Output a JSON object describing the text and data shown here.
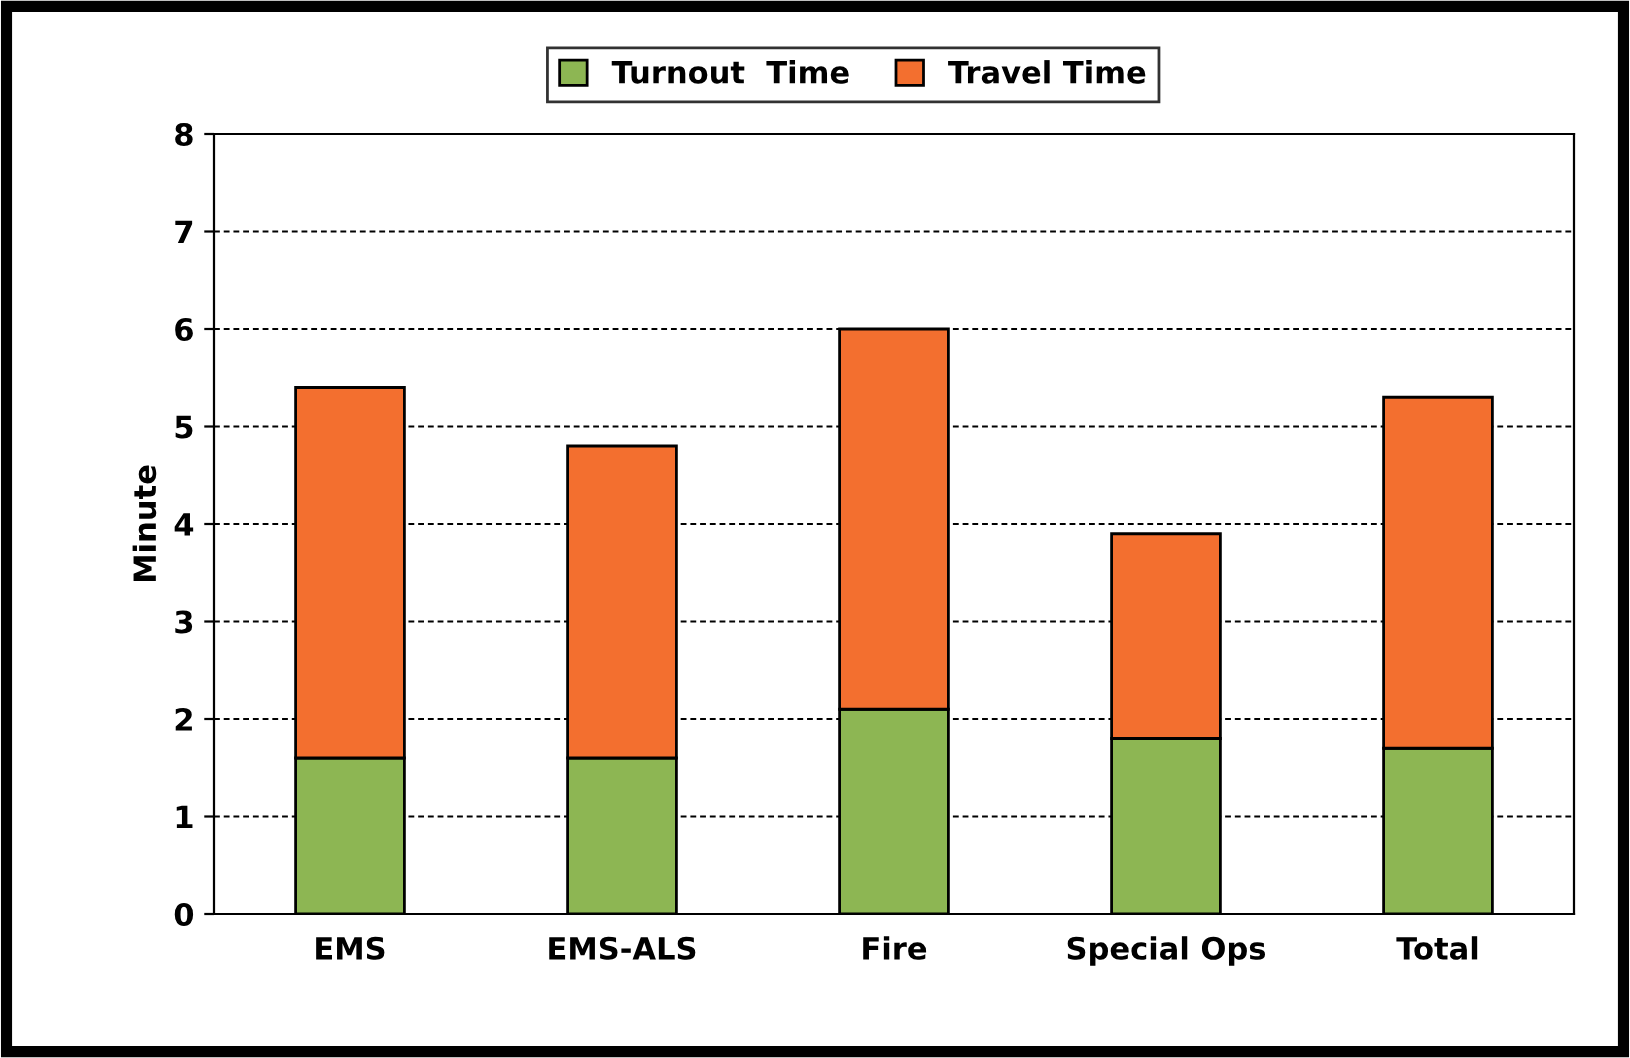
{
  "chart_data": {
    "type": "bar",
    "ylabel": "Minute",
    "stacked": true,
    "categories": [
      "EMS",
      "EMS-ALS",
      "Fire",
      "Special Ops",
      "Total"
    ],
    "series": [
      {
        "name": "Turnout  Time",
        "color": "#8db653",
        "values": [
          1.6,
          1.6,
          2.1,
          1.8,
          1.7
        ]
      },
      {
        "name": "Travel Time",
        "color": "#f36f2f",
        "values": [
          3.8,
          3.2,
          3.9,
          2.1,
          3.6
        ]
      }
    ],
    "ylim": [
      0,
      8
    ],
    "yticks": [
      0,
      1,
      2,
      3,
      4,
      5,
      6,
      7,
      8
    ],
    "grid": "y",
    "legend": "top"
  }
}
